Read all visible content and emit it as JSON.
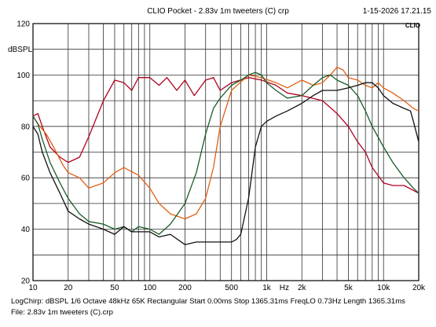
{
  "header": {
    "title": "CLIO Pocket - 2.83v 1m tweeters (C) crp",
    "timestamp": "1-15-2026 17.21.15",
    "brand": "CLIO"
  },
  "footer": {
    "info": "LogChirp: dBSPL   1/6 Octave   48kHz  65K   Rectangular   Start 0.00ms   Stop 1365.31ms   FreqLO 0.73Hz   Length 1365.31ms",
    "file": "File: 2.83v 1m tweeters (C).crp"
  },
  "chart_data": {
    "type": "line",
    "xscale": "log",
    "xlim": [
      10,
      20000
    ],
    "ylim": [
      20,
      120
    ],
    "ylabel": "dBSPL",
    "xlabel": "Hz",
    "grid": true,
    "x_ticks": [
      {
        "v": 10,
        "label": "10"
      },
      {
        "v": 20,
        "label": "20"
      },
      {
        "v": 50,
        "label": "50"
      },
      {
        "v": 100,
        "label": "100"
      },
      {
        "v": 200,
        "label": "200"
      },
      {
        "v": 500,
        "label": "500"
      },
      {
        "v": 1000,
        "label": "1k"
      },
      {
        "v": 1414,
        "label": "Hz"
      },
      {
        "v": 2000,
        "label": "2k"
      },
      {
        "v": 5000,
        "label": "5k"
      },
      {
        "v": 10000,
        "label": "10k"
      },
      {
        "v": 20000,
        "label": "20k"
      }
    ],
    "y_ticks": [
      {
        "v": 20,
        "label": "20"
      },
      {
        "v": 40,
        "label": "40"
      },
      {
        "v": 60,
        "label": "60"
      },
      {
        "v": 80,
        "label": "80"
      },
      {
        "v": 100,
        "label": "100"
      },
      {
        "v": 120,
        "label": "120"
      }
    ],
    "series": [
      {
        "color": "#b00020",
        "points": [
          [
            10,
            84
          ],
          [
            11,
            85
          ],
          [
            12,
            80
          ],
          [
            14,
            72
          ],
          [
            17,
            68
          ],
          [
            20,
            66
          ],
          [
            25,
            68
          ],
          [
            30,
            76
          ],
          [
            40,
            90
          ],
          [
            50,
            98
          ],
          [
            60,
            97
          ],
          [
            70,
            94
          ],
          [
            80,
            99
          ],
          [
            100,
            99
          ],
          [
            120,
            96
          ],
          [
            140,
            99
          ],
          [
            170,
            94
          ],
          [
            200,
            98
          ],
          [
            240,
            92
          ],
          [
            300,
            98
          ],
          [
            350,
            99
          ],
          [
            400,
            94
          ],
          [
            500,
            97
          ],
          [
            700,
            99
          ],
          [
            900,
            98
          ],
          [
            1200,
            96
          ],
          [
            1500,
            93
          ],
          [
            2000,
            92
          ],
          [
            3000,
            90
          ],
          [
            4000,
            85
          ],
          [
            5000,
            80
          ],
          [
            6000,
            74
          ],
          [
            7000,
            70
          ],
          [
            8000,
            64
          ],
          [
            10000,
            58
          ],
          [
            12000,
            57
          ],
          [
            15000,
            57
          ],
          [
            20000,
            54
          ]
        ]
      },
      {
        "color": "#e06010",
        "points": [
          [
            10,
            84
          ],
          [
            11,
            81
          ],
          [
            13,
            77
          ],
          [
            15,
            72
          ],
          [
            18,
            65
          ],
          [
            20,
            62
          ],
          [
            25,
            60
          ],
          [
            30,
            56
          ],
          [
            40,
            58
          ],
          [
            50,
            62
          ],
          [
            60,
            64
          ],
          [
            80,
            61
          ],
          [
            100,
            56
          ],
          [
            120,
            50
          ],
          [
            150,
            46
          ],
          [
            200,
            44
          ],
          [
            250,
            46
          ],
          [
            300,
            52
          ],
          [
            350,
            64
          ],
          [
            400,
            80
          ],
          [
            500,
            94
          ],
          [
            700,
            100
          ],
          [
            900,
            99
          ],
          [
            1200,
            97
          ],
          [
            1500,
            95
          ],
          [
            2000,
            98
          ],
          [
            2500,
            96
          ],
          [
            3000,
            97
          ],
          [
            3500,
            100
          ],
          [
            4000,
            103
          ],
          [
            4500,
            102
          ],
          [
            5000,
            99
          ],
          [
            6000,
            98
          ],
          [
            7000,
            96
          ],
          [
            8000,
            95
          ],
          [
            9000,
            97
          ],
          [
            10000,
            95
          ],
          [
            12000,
            93
          ],
          [
            15000,
            90
          ],
          [
            18000,
            87
          ],
          [
            20000,
            86
          ]
        ]
      },
      {
        "color": "#1a5c28",
        "points": [
          [
            10,
            84
          ],
          [
            11,
            81
          ],
          [
            12,
            75
          ],
          [
            14,
            66
          ],
          [
            17,
            58
          ],
          [
            20,
            52
          ],
          [
            25,
            46
          ],
          [
            30,
            43
          ],
          [
            40,
            42
          ],
          [
            50,
            40
          ],
          [
            60,
            41
          ],
          [
            70,
            39
          ],
          [
            80,
            41
          ],
          [
            100,
            40
          ],
          [
            120,
            38
          ],
          [
            150,
            42
          ],
          [
            200,
            50
          ],
          [
            250,
            62
          ],
          [
            300,
            77
          ],
          [
            350,
            87
          ],
          [
            400,
            91
          ],
          [
            500,
            96
          ],
          [
            600,
            98
          ],
          [
            700,
            100
          ],
          [
            800,
            101
          ],
          [
            900,
            100
          ],
          [
            1000,
            97
          ],
          [
            1200,
            94
          ],
          [
            1500,
            91
          ],
          [
            2000,
            92
          ],
          [
            2500,
            96
          ],
          [
            3000,
            99
          ],
          [
            3500,
            100
          ],
          [
            4000,
            98
          ],
          [
            5000,
            96
          ],
          [
            6000,
            92
          ],
          [
            7000,
            86
          ],
          [
            8000,
            80
          ],
          [
            10000,
            72
          ],
          [
            12000,
            66
          ],
          [
            15000,
            60
          ],
          [
            18000,
            56
          ],
          [
            20000,
            54
          ]
        ]
      },
      {
        "color": "#111111",
        "points": [
          [
            10,
            80
          ],
          [
            11,
            77
          ],
          [
            12,
            70
          ],
          [
            14,
            62
          ],
          [
            17,
            54
          ],
          [
            20,
            47
          ],
          [
            25,
            44
          ],
          [
            30,
            42
          ],
          [
            40,
            40
          ],
          [
            50,
            38
          ],
          [
            60,
            41
          ],
          [
            70,
            39
          ],
          [
            80,
            39
          ],
          [
            100,
            39
          ],
          [
            120,
            37
          ],
          [
            150,
            38
          ],
          [
            200,
            34
          ],
          [
            250,
            35
          ],
          [
            300,
            35
          ],
          [
            400,
            35
          ],
          [
            500,
            35
          ],
          [
            550,
            36
          ],
          [
            600,
            38
          ],
          [
            700,
            52
          ],
          [
            800,
            72
          ],
          [
            900,
            80
          ],
          [
            1000,
            82
          ],
          [
            1200,
            84
          ],
          [
            1500,
            86
          ],
          [
            2000,
            89
          ],
          [
            2500,
            92
          ],
          [
            3000,
            94
          ],
          [
            3500,
            94
          ],
          [
            4000,
            94
          ],
          [
            5000,
            95
          ],
          [
            6000,
            96
          ],
          [
            7000,
            97
          ],
          [
            8000,
            97
          ],
          [
            9000,
            95
          ],
          [
            10000,
            92
          ],
          [
            12000,
            89
          ],
          [
            15000,
            87
          ],
          [
            17000,
            86
          ],
          [
            18000,
            82
          ],
          [
            20000,
            74
          ]
        ]
      }
    ]
  }
}
